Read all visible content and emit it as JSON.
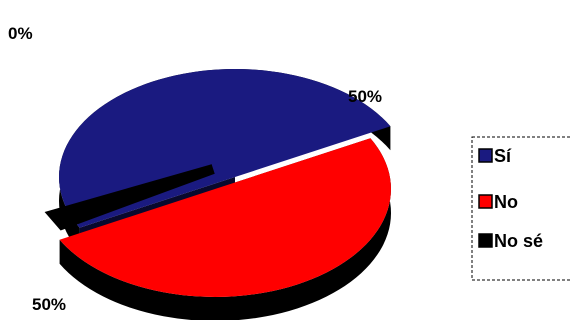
{
  "chart_data": {
    "type": "pie",
    "style": "3d-exploded",
    "title": "",
    "slices": [
      {
        "label": "Sí",
        "value": 50,
        "display": "50%",
        "color": "#1a1a80"
      },
      {
        "label": "No",
        "value": 50,
        "display": "50%",
        "color": "#ff0000"
      },
      {
        "label": "No sé",
        "value": 0,
        "display": "0%",
        "color": "#000000"
      }
    ],
    "legend": {
      "placement": "right",
      "items": [
        "Sí",
        "No",
        "No sé"
      ]
    }
  }
}
